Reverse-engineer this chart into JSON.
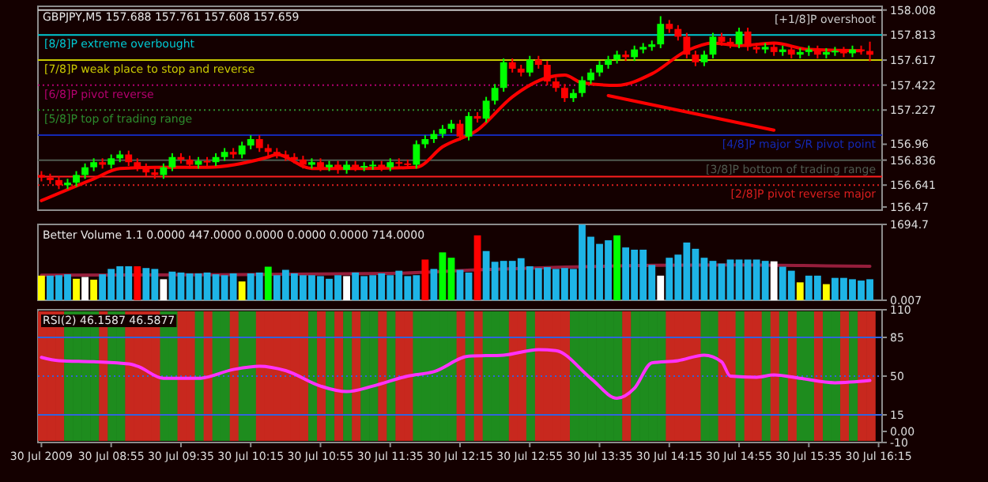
{
  "chart_data": [
    {
      "type": "candlestick",
      "title": "GBPJPY,M5 157.688 157.761 157.608 157.659",
      "tick_labels": "y",
      "grid": false,
      "categories": [
        null,
        null,
        null,
        null,
        null,
        null,
        null,
        null,
        null,
        null,
        null,
        null,
        null,
        null,
        null,
        null,
        null,
        null,
        null,
        null,
        null,
        null,
        null,
        null,
        null,
        null,
        null,
        null,
        null,
        null,
        null,
        null,
        null,
        null,
        null,
        null,
        null,
        null,
        null,
        null,
        null,
        null,
        null,
        null,
        null,
        null,
        null,
        null,
        null,
        null,
        null,
        null,
        null,
        null,
        null,
        null,
        null,
        null,
        null,
        null,
        null,
        null,
        null,
        null,
        null,
        null,
        null,
        null,
        null,
        null,
        null,
        null,
        null,
        null,
        null,
        null,
        null,
        null,
        null,
        null,
        null,
        null,
        null,
        null,
        null,
        null,
        null,
        null,
        null,
        null,
        null,
        null,
        null,
        null,
        null,
        null,
        null
      ],
      "ohlc": [
        [
          156.72,
          156.75,
          156.67,
          156.7
        ],
        [
          156.7,
          156.73,
          156.65,
          156.68
        ],
        [
          156.68,
          156.71,
          156.61,
          156.64
        ],
        [
          156.64,
          156.69,
          156.61,
          156.66
        ],
        [
          156.66,
          156.75,
          156.63,
          156.72
        ],
        [
          156.72,
          156.81,
          156.69,
          156.78
        ],
        [
          156.78,
          156.85,
          156.75,
          156.82
        ],
        [
          156.82,
          156.85,
          156.77,
          156.8
        ],
        [
          156.8,
          156.88,
          156.77,
          156.85
        ],
        [
          156.85,
          156.91,
          156.82,
          156.88
        ],
        [
          156.88,
          156.91,
          156.79,
          156.82
        ],
        [
          156.82,
          156.85,
          156.75,
          156.78
        ],
        [
          156.78,
          156.81,
          156.71,
          156.74
        ],
        [
          156.74,
          156.77,
          156.69,
          156.72
        ],
        [
          156.72,
          156.81,
          156.69,
          156.78
        ],
        [
          156.78,
          156.89,
          156.75,
          156.86
        ],
        [
          156.86,
          156.89,
          156.81,
          156.84
        ],
        [
          156.84,
          156.87,
          156.77,
          156.8
        ],
        [
          156.8,
          156.86,
          156.77,
          156.83
        ],
        [
          156.83,
          156.86,
          156.79,
          156.82
        ],
        [
          156.82,
          156.89,
          156.79,
          156.86
        ],
        [
          156.86,
          156.93,
          156.83,
          156.9
        ],
        [
          156.9,
          156.93,
          156.85,
          156.88
        ],
        [
          156.88,
          156.98,
          156.85,
          156.95
        ],
        [
          156.95,
          157.03,
          156.92,
          157.0
        ],
        [
          157.0,
          157.03,
          156.9,
          156.93
        ],
        [
          156.93,
          156.96,
          156.87,
          156.9
        ],
        [
          156.9,
          156.93,
          156.85,
          156.88
        ],
        [
          156.88,
          156.91,
          156.83,
          156.86
        ],
        [
          156.86,
          156.89,
          156.81,
          156.84
        ],
        [
          156.84,
          156.87,
          156.77,
          156.8
        ],
        [
          156.8,
          156.85,
          156.77,
          156.82
        ],
        [
          156.82,
          156.85,
          156.75,
          156.78
        ],
        [
          156.78,
          156.83,
          156.75,
          156.8
        ],
        [
          156.8,
          156.83,
          156.73,
          156.76
        ],
        [
          156.76,
          156.83,
          156.73,
          156.8
        ],
        [
          156.8,
          156.83,
          156.75,
          156.78
        ],
        [
          156.78,
          156.82,
          156.75,
          156.79
        ],
        [
          156.79,
          156.83,
          156.76,
          156.8
        ],
        [
          156.8,
          156.83,
          156.75,
          156.78
        ],
        [
          156.78,
          156.85,
          156.75,
          156.82
        ],
        [
          156.82,
          156.85,
          156.78,
          156.81
        ],
        [
          156.81,
          156.84,
          156.77,
          156.8
        ],
        [
          156.8,
          156.99,
          156.77,
          156.96
        ],
        [
          156.96,
          157.03,
          156.93,
          157.0
        ],
        [
          157.0,
          157.07,
          156.97,
          157.04
        ],
        [
          157.04,
          157.11,
          157.01,
          157.08
        ],
        [
          157.08,
          157.15,
          157.05,
          157.12
        ],
        [
          157.12,
          157.15,
          156.99,
          157.02
        ],
        [
          157.02,
          157.21,
          156.99,
          157.18
        ],
        [
          157.18,
          157.21,
          157.13,
          157.16
        ],
        [
          157.16,
          157.33,
          157.13,
          157.3
        ],
        [
          157.3,
          157.43,
          157.27,
          157.4
        ],
        [
          157.4,
          157.63,
          157.37,
          157.6
        ],
        [
          157.6,
          157.63,
          157.52,
          157.55
        ],
        [
          157.55,
          157.58,
          157.49,
          157.52
        ],
        [
          157.52,
          157.65,
          157.49,
          157.62
        ],
        [
          157.62,
          157.65,
          157.55,
          157.58
        ],
        [
          157.58,
          157.61,
          157.42,
          157.45
        ],
        [
          157.45,
          157.48,
          157.37,
          157.4
        ],
        [
          157.4,
          157.43,
          157.29,
          157.32
        ],
        [
          157.32,
          157.39,
          157.29,
          157.36
        ],
        [
          157.36,
          157.49,
          157.33,
          157.46
        ],
        [
          157.46,
          157.55,
          157.43,
          157.52
        ],
        [
          157.52,
          157.61,
          157.49,
          157.58
        ],
        [
          157.58,
          157.65,
          157.55,
          157.62
        ],
        [
          157.62,
          157.69,
          157.59,
          157.66
        ],
        [
          157.66,
          157.69,
          157.61,
          157.64
        ],
        [
          157.64,
          157.73,
          157.61,
          157.7
        ],
        [
          157.7,
          157.75,
          157.67,
          157.72
        ],
        [
          157.72,
          157.77,
          157.69,
          157.74
        ],
        [
          157.74,
          157.96,
          157.71,
          157.9
        ],
        [
          157.9,
          157.93,
          157.83,
          157.86
        ],
        [
          157.86,
          157.89,
          157.77,
          157.8
        ],
        [
          157.8,
          157.83,
          157.63,
          157.66
        ],
        [
          157.66,
          157.69,
          157.57,
          157.6
        ],
        [
          157.6,
          157.69,
          157.57,
          157.66
        ],
        [
          157.66,
          157.83,
          157.63,
          157.8
        ],
        [
          157.8,
          157.83,
          157.73,
          157.76
        ],
        [
          157.76,
          157.79,
          157.71,
          157.74
        ],
        [
          157.74,
          157.87,
          157.71,
          157.84
        ],
        [
          157.84,
          157.87,
          157.69,
          157.72
        ],
        [
          157.72,
          157.75,
          157.67,
          157.7
        ],
        [
          157.7,
          157.75,
          157.67,
          157.72
        ],
        [
          157.72,
          157.75,
          157.65,
          157.68
        ],
        [
          157.68,
          157.73,
          157.65,
          157.7
        ],
        [
          157.7,
          157.73,
          157.63,
          157.66
        ],
        [
          157.66,
          157.71,
          157.63,
          157.68
        ],
        [
          157.68,
          157.73,
          157.65,
          157.7
        ],
        [
          157.7,
          157.73,
          157.63,
          157.66
        ],
        [
          157.66,
          157.71,
          157.63,
          157.68
        ],
        [
          157.68,
          157.72,
          157.65,
          157.69
        ],
        [
          157.69,
          157.72,
          157.64,
          157.67
        ],
        [
          157.67,
          157.73,
          157.64,
          157.7
        ],
        [
          157.7,
          157.73,
          157.66,
          157.69
        ],
        [
          157.688,
          157.761,
          157.608,
          157.659
        ],
        null
      ],
      "series": [
        {
          "type": "line",
          "color": "#ff0000",
          "values": [
            156.52,
            null,
            null,
            null,
            null,
            null,
            156.69,
            null,
            null,
            156.77,
            null,
            null,
            null,
            156.78,
            null,
            null,
            null,
            null,
            null,
            156.78,
            null,
            null,
            null,
            null,
            null,
            null,
            156.86,
            156.88,
            null,
            null,
            null,
            156.77,
            null,
            null,
            null,
            null,
            156.77,
            null,
            null,
            null,
            null,
            null,
            null,
            156.78,
            null,
            null,
            156.94,
            null,
            null,
            null,
            157.07,
            null,
            null,
            null,
            157.33,
            null,
            null,
            null,
            157.48,
            null,
            157.5,
            null,
            157.44,
            null,
            null,
            null,
            157.42,
            null,
            null,
            null,
            157.51,
            null,
            null,
            null,
            157.69,
            null,
            null,
            157.75,
            null,
            null,
            157.73,
            null,
            null,
            null,
            157.75,
            null,
            null,
            null,
            157.7,
            null,
            null,
            null,
            null,
            null,
            157.69,
            null,
            null
          ]
        },
        {
          "type": "line",
          "color": "#ff0000",
          "values": [
            null,
            null,
            null,
            null,
            null,
            null,
            null,
            null,
            null,
            null,
            null,
            null,
            null,
            null,
            null,
            null,
            null,
            null,
            null,
            null,
            null,
            null,
            null,
            null,
            null,
            null,
            null,
            null,
            null,
            null,
            null,
            null,
            null,
            null,
            null,
            null,
            null,
            null,
            null,
            null,
            null,
            null,
            null,
            null,
            null,
            null,
            null,
            null,
            null,
            null,
            null,
            null,
            null,
            null,
            null,
            null,
            null,
            null,
            null,
            null,
            null,
            null,
            null,
            null,
            null,
            157.34,
            null,
            null,
            null,
            null,
            null,
            null,
            null,
            null,
            null,
            null,
            null,
            null,
            null,
            null,
            null,
            null,
            null,
            null,
            157.07,
            null,
            null,
            null,
            null,
            null,
            null,
            null,
            null,
            null,
            null,
            null,
            null
          ]
        }
      ],
      "ylim": [
        156.445,
        158.037
      ],
      "yticks": [
        158.008,
        157.813,
        157.617,
        157.422,
        157.227,
        156.96,
        156.836,
        156.641,
        156.47
      ],
      "ref_lines": [
        {
          "axis": "y",
          "value": 158.008,
          "label": "[+1/8]P overshoot",
          "color": "#c8c8c8",
          "line_style": "solid"
        },
        {
          "axis": "y",
          "value": 157.813,
          "label": "[8/8]P extreme overbought",
          "color": "#00c8d2",
          "line_style": "solid"
        },
        {
          "axis": "y",
          "value": 157.617,
          "label": "[7/8]P weak place to stop and reverse",
          "color": "#c8c800",
          "line_style": "solid"
        },
        {
          "axis": "y",
          "value": 157.422,
          "label": "[6/8]P pivot reverse",
          "color": "#b4006e",
          "line_style": "dotted"
        },
        {
          "axis": "y",
          "value": 157.227,
          "label": "[5/8]P top of trading range",
          "color": "#2d8c2d",
          "line_style": "dotted"
        },
        {
          "axis": "y",
          "value": 157.031,
          "label": "[4/8]P major S/R pivot point",
          "color": "#1428b4",
          "line_style": "solid"
        },
        {
          "axis": "y",
          "value": 156.836,
          "label": "[3/8]P bottom of trading range",
          "color": "#505a50",
          "line_style": "solid"
        },
        {
          "axis": "y",
          "value": 156.708,
          "label": null,
          "color": "#ff1e1e",
          "line_style": "solid"
        },
        {
          "axis": "y",
          "value": 156.641,
          "label": "[2/8]P pivot reverse major",
          "color": "#dc1e1e",
          "line_style": "dotted"
        }
      ]
    },
    {
      "type": "bar",
      "title": "Better Volume 1.1 0.0000 447.0000 0.0000 0.0000 0.0000 714.0000",
      "tick_labels": "y",
      "grid": false,
      "categories": [
        null,
        null,
        null,
        null,
        null,
        null,
        null,
        null,
        null,
        null,
        null,
        null,
        null,
        null,
        null,
        null,
        null,
        null,
        null,
        null,
        null,
        null,
        null,
        null,
        null,
        null,
        null,
        null,
        null,
        null,
        null,
        null,
        null,
        null,
        null,
        null,
        null,
        null,
        null,
        null,
        null,
        null,
        null,
        null,
        null,
        null,
        null,
        null,
        null,
        null,
        null,
        null,
        null,
        null,
        null,
        null,
        null,
        null,
        null,
        null,
        null,
        null,
        null,
        null,
        null,
        null,
        null,
        null,
        null,
        null,
        null,
        null,
        null,
        null,
        null,
        null,
        null,
        null,
        null,
        null,
        null,
        null,
        null,
        null,
        null,
        null,
        null,
        null,
        null,
        null,
        null,
        null,
        null,
        null,
        null,
        null,
        null
      ],
      "values": [
        550,
        550,
        560,
        580,
        480,
        520,
        460,
        580,
        700,
        760,
        760,
        760,
        720,
        700,
        470,
        640,
        620,
        600,
        600,
        620,
        580,
        560,
        600,
        420,
        600,
        620,
        750,
        560,
        680,
        600,
        560,
        560,
        540,
        480,
        560,
        540,
        620,
        540,
        560,
        600,
        560,
        660,
        540,
        560,
        910,
        700,
        1070,
        950,
        680,
        620,
        1450,
        1100,
        860,
        880,
        880,
        940,
        760,
        720,
        740,
        700,
        720,
        700,
        1690,
        1420,
        1260,
        1340,
        1450,
        1180,
        1130,
        1130,
        790,
        550,
        950,
        1020,
        1290,
        1150,
        950,
        880,
        820,
        910,
        910,
        910,
        910,
        880,
        870,
        750,
        660,
        400,
        550,
        550,
        360,
        500,
        500,
        470,
        440,
        470,
        null
      ],
      "colors": [
        "#ffff00",
        "#1eb4e6",
        "#1eb4e6",
        "#1eb4e6",
        "#ffff00",
        "#ffffff",
        "#ffff00",
        "#1eb4e6",
        "#1eb4e6",
        "#1eb4e6",
        "#1eb4e6",
        "#ff0000",
        "#1eb4e6",
        "#1eb4e6",
        "#ffffff",
        "#1eb4e6",
        "#1eb4e6",
        "#1eb4e6",
        "#1eb4e6",
        "#1eb4e6",
        "#1eb4e6",
        "#1eb4e6",
        "#1eb4e6",
        "#ffff00",
        "#1eb4e6",
        "#1eb4e6",
        "#00ff00",
        "#1eb4e6",
        "#1eb4e6",
        "#1eb4e6",
        "#1eb4e6",
        "#1eb4e6",
        "#1eb4e6",
        "#1eb4e6",
        "#1eb4e6",
        "#ffffff",
        "#1eb4e6",
        "#1eb4e6",
        "#1eb4e6",
        "#1eb4e6",
        "#1eb4e6",
        "#1eb4e6",
        "#1eb4e6",
        "#1eb4e6",
        "#ff0000",
        "#1eb4e6",
        "#00ff00",
        "#00ff00",
        "#1eb4e6",
        "#1eb4e6",
        "#ff0000",
        "#1eb4e6",
        "#1eb4e6",
        "#1eb4e6",
        "#1eb4e6",
        "#1eb4e6",
        "#1eb4e6",
        "#1eb4e6",
        "#1eb4e6",
        "#1eb4e6",
        "#1eb4e6",
        "#1eb4e6",
        "#1eb4e6",
        "#1eb4e6",
        "#1eb4e6",
        "#1eb4e6",
        "#00ff00",
        "#1eb4e6",
        "#1eb4e6",
        "#1eb4e6",
        "#1eb4e6",
        "#ffffff",
        "#1eb4e6",
        "#1eb4e6",
        "#1eb4e6",
        "#1eb4e6",
        "#1eb4e6",
        "#1eb4e6",
        "#1eb4e6",
        "#1eb4e6",
        "#1eb4e6",
        "#1eb4e6",
        "#1eb4e6",
        "#1eb4e6",
        "#ffffff",
        "#1eb4e6",
        "#1eb4e6",
        "#ffff00",
        "#1eb4e6",
        "#1eb4e6",
        "#ffff00",
        "#1eb4e6",
        "#1eb4e6",
        "#1eb4e6",
        "#1eb4e6",
        "#1eb4e6",
        "#1eb4e6"
      ],
      "series": [
        {
          "type": "line",
          "color": "#961e3c",
          "values": [
            560,
            null,
            null,
            null,
            null,
            null,
            null,
            null,
            null,
            null,
            null,
            null,
            null,
            null,
            null,
            null,
            null,
            null,
            null,
            null,
            570,
            null,
            null,
            null,
            null,
            null,
            null,
            null,
            null,
            null,
            null,
            null,
            null,
            null,
            null,
            null,
            null,
            null,
            null,
            null,
            600,
            null,
            null,
            null,
            null,
            null,
            null,
            null,
            null,
            null,
            680,
            null,
            null,
            null,
            null,
            null,
            null,
            null,
            null,
            null,
            740,
            null,
            null,
            null,
            null,
            null,
            null,
            null,
            null,
            null,
            780,
            null,
            null,
            null,
            null,
            null,
            null,
            null,
            null,
            null,
            790,
            null,
            null,
            null,
            null,
            null,
            null,
            null,
            null,
            null,
            770,
            null,
            null,
            null,
            null,
            760,
            null
          ]
        }
      ],
      "ylim": [
        0.007,
        1694.7
      ],
      "yticks": [
        1694.7,
        0.007
      ]
    },
    {
      "type": "line",
      "title": "RSI(2) 46.1587 46.5877",
      "grid": false,
      "categories": [
        "30 Jul 2009",
        null,
        null,
        null,
        null,
        null,
        null,
        null,
        "30 Jul 08:55",
        null,
        null,
        null,
        null,
        null,
        null,
        null,
        "30 Jul 09:35",
        null,
        null,
        null,
        null,
        null,
        null,
        null,
        "30 Jul 10:15",
        null,
        null,
        null,
        null,
        null,
        null,
        null,
        "30 Jul 10:55",
        null,
        null,
        null,
        null,
        null,
        null,
        null,
        "30 Jul 11:35",
        null,
        null,
        null,
        null,
        null,
        null,
        null,
        "30 Jul 12:15",
        null,
        null,
        null,
        null,
        null,
        null,
        null,
        "30 Jul 12:55",
        null,
        null,
        null,
        null,
        null,
        null,
        null,
        "30 Jul 13:35",
        null,
        null,
        null,
        null,
        null,
        null,
        null,
        "30 Jul 14:15",
        null,
        null,
        null,
        null,
        null,
        null,
        null,
        "30 Jul 14:55",
        null,
        null,
        null,
        null,
        null,
        null,
        null,
        "30 Jul 15:35",
        null,
        null,
        null,
        null,
        null,
        null,
        null,
        "30 Jul 16:15"
      ],
      "series": [
        {
          "color": "#ff32ff",
          "values": [
            67,
            null,
            64,
            null,
            null,
            null,
            63,
            null,
            null,
            null,
            61,
            59,
            null,
            null,
            48,
            null,
            null,
            null,
            48,
            null,
            null,
            null,
            56,
            null,
            null,
            59,
            null,
            null,
            55,
            null,
            null,
            null,
            41,
            null,
            null,
            36,
            null,
            null,
            41,
            null,
            null,
            null,
            50,
            null,
            null,
            54,
            null,
            null,
            null,
            68,
            null,
            null,
            null,
            69,
            null,
            null,
            null,
            74,
            null,
            73,
            null,
            null,
            null,
            48,
            null,
            null,
            30,
            null,
            39,
            null,
            62,
            null,
            null,
            64,
            null,
            null,
            69,
            null,
            63,
            50,
            null,
            null,
            49,
            null,
            51,
            null,
            null,
            48,
            null,
            null,
            null,
            44,
            null,
            null,
            null,
            46,
            null
          ]
        }
      ],
      "ylim": [
        -10,
        110
      ],
      "yticks": [
        110,
        85,
        50,
        15,
        {
          "value": 0,
          "label": "0.00"
        },
        -10
      ],
      "ref_lines": [
        {
          "axis": "y",
          "value": 85,
          "color": "#3264dc",
          "line_style": "solid"
        },
        {
          "axis": "y",
          "value": 50,
          "color": "#3264dc",
          "line_style": "dotted"
        },
        {
          "axis": "y",
          "value": 15,
          "color": "#3264dc",
          "line_style": "solid"
        }
      ]
    }
  ]
}
